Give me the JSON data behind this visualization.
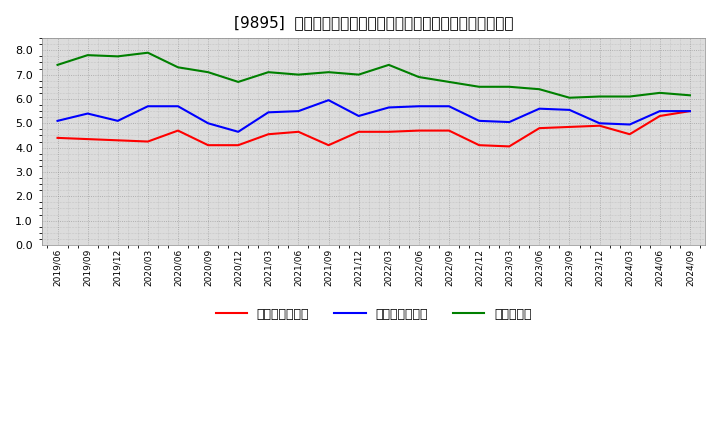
{
  "title": "[9895]  売上債権回転率、買入債務回転率、在庫回転率の推移",
  "x_labels": [
    "2019/06",
    "2019/09",
    "2019/12",
    "2020/03",
    "2020/06",
    "2020/09",
    "2020/12",
    "2021/03",
    "2021/06",
    "2021/09",
    "2021/12",
    "2022/03",
    "2022/06",
    "2022/09",
    "2022/12",
    "2023/03",
    "2023/06",
    "2023/09",
    "2023/12",
    "2024/03",
    "2024/06",
    "2024/09"
  ],
  "receivables": [
    4.4,
    4.35,
    4.3,
    4.25,
    4.7,
    4.1,
    4.1,
    4.55,
    4.65,
    4.1,
    4.65,
    4.65,
    4.7,
    4.7,
    4.1,
    4.05,
    4.8,
    4.85,
    4.9,
    4.55,
    5.3,
    5.5
  ],
  "payables": [
    5.1,
    5.4,
    5.1,
    5.7,
    5.7,
    5.0,
    4.65,
    5.45,
    5.5,
    5.95,
    5.3,
    5.65,
    5.7,
    5.7,
    5.1,
    5.05,
    5.6,
    5.55,
    5.0,
    4.95,
    5.5,
    5.5
  ],
  "inventory": [
    7.4,
    7.8,
    7.75,
    7.9,
    7.3,
    7.1,
    6.7,
    7.1,
    7.0,
    7.1,
    7.0,
    7.4,
    6.9,
    6.7,
    6.5,
    6.5,
    6.4,
    6.05,
    6.1,
    6.1,
    6.25,
    6.15
  ],
  "receivables_color": "#ff0000",
  "payables_color": "#0000ff",
  "inventory_color": "#008000",
  "legend_labels": [
    "売上債権回転率",
    "買入債務回転率",
    "在庫回転率"
  ],
  "ylim": [
    0.0,
    8.5
  ],
  "yticks": [
    0.0,
    1.0,
    2.0,
    3.0,
    4.0,
    5.0,
    6.0,
    7.0,
    8.0
  ],
  "plot_bg_color": "#dcdcdc",
  "fig_bg_color": "#ffffff",
  "grid_color": "#888888",
  "title_fontsize": 11,
  "linewidth": 1.5
}
